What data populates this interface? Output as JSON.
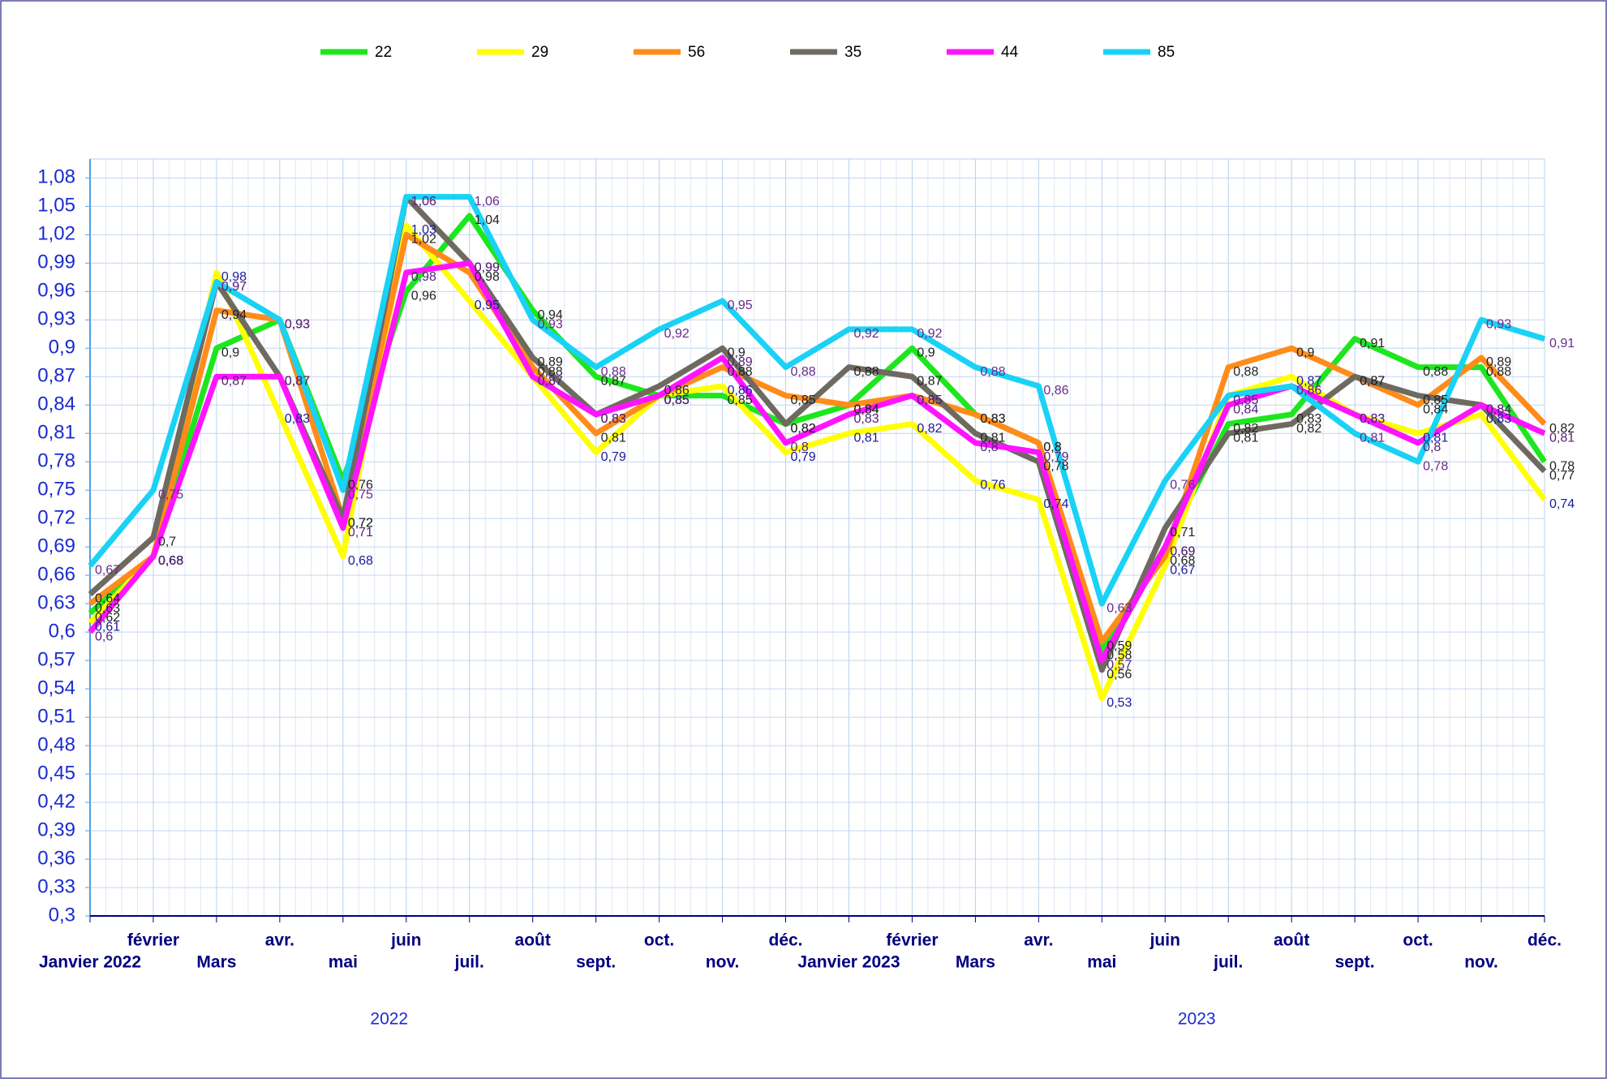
{
  "chart_data": {
    "type": "line",
    "categories": [
      "Janvier 2022",
      "février",
      "Mars",
      "avr.",
      "mai",
      "juin",
      "juil.",
      "août",
      "sept.",
      "oct.",
      "nov.",
      "déc.",
      "Janvier 2023",
      "février",
      "Mars",
      "avr.",
      "mai",
      "juin",
      "juil.",
      "août",
      "sept.",
      "oct.",
      "nov.",
      "déc."
    ],
    "groups": [
      "2022",
      "2023"
    ],
    "series": [
      {
        "name": "22",
        "color": "#1ee61e",
        "label_color": "#222222",
        "values": [
          0.62,
          0.68,
          0.9,
          0.93,
          0.76,
          0.96,
          1.04,
          0.94,
          0.87,
          0.85,
          0.85,
          0.82,
          0.84,
          0.9,
          0.83,
          0.8,
          0.58,
          0.69,
          0.82,
          0.83,
          0.91,
          0.88,
          0.88,
          0.78
        ],
        "value_labels": [
          "0,62",
          "0,68",
          "0,9",
          "0,93",
          "0,76",
          "0,96",
          "1,04",
          "0,94",
          "0,87",
          "0,85",
          "0,85",
          "0,82",
          "0,84",
          "0,9",
          "0,83",
          "0,8",
          "0,58",
          "0,69",
          "0,82",
          "0,83",
          "0,91",
          "0,88",
          "0,88",
          "0,78"
        ]
      },
      {
        "name": "29",
        "color": "#ffff00",
        "label_color": "#1a1a99",
        "values": [
          0.61,
          0.68,
          0.98,
          0.83,
          0.68,
          1.03,
          0.95,
          0.87,
          0.79,
          0.85,
          0.86,
          0.79,
          0.81,
          0.82,
          0.76,
          0.74,
          0.53,
          0.67,
          0.85,
          0.87,
          0.83,
          0.81,
          0.83,
          0.74
        ],
        "value_labels": [
          "0,61",
          "0,68",
          "0,98",
          "0,83",
          "0,68",
          "1,03",
          "0,95",
          "0,87",
          "0,79",
          "0,85",
          "0,86",
          "0,79",
          "0,81",
          "0,82",
          "0,76",
          "0,74",
          "0,53",
          "0,67",
          "0,85",
          "0,87",
          "0,83",
          "0,81",
          "0,83",
          "0,74"
        ]
      },
      {
        "name": "56",
        "color": "#ff8c1a",
        "label_color": "#222222",
        "values": [
          0.63,
          0.68,
          0.94,
          0.93,
          0.72,
          1.02,
          0.98,
          0.88,
          0.81,
          0.85,
          0.88,
          0.85,
          0.84,
          0.85,
          0.83,
          0.8,
          0.59,
          0.68,
          0.88,
          0.9,
          0.87,
          0.84,
          0.89,
          0.82
        ],
        "value_labels": [
          "0,63",
          "0,68",
          "0,94",
          "0,93",
          "0,72",
          "1,02",
          "0,98",
          "0,88",
          "0,81",
          "0,85",
          "0,88",
          "0,85",
          "0,84",
          "0,85",
          "0,83",
          "0,8",
          "0,59",
          "0,68",
          "0,88",
          "0,9",
          "0,87",
          "0,84",
          "0,89",
          "0,82"
        ]
      },
      {
        "name": "35",
        "color": "#6e6a60",
        "label_color": "#222222",
        "values": [
          0.64,
          0.7,
          0.97,
          0.87,
          0.72,
          1.06,
          0.99,
          0.89,
          0.83,
          0.86,
          0.9,
          0.82,
          0.88,
          0.87,
          0.81,
          0.78,
          0.56,
          0.71,
          0.81,
          0.82,
          0.87,
          0.85,
          0.84,
          0.77
        ],
        "value_labels": [
          "0,64",
          "0,7",
          "0,97",
          "0,87",
          "0,72",
          "1,06",
          "0,99",
          "0,89",
          "0,83",
          "0,86",
          "0,9",
          "0,82",
          "0,88",
          "0,87",
          "0,81",
          "0,78",
          "0,56",
          "0,71",
          "0,81",
          "0,82",
          "0,87",
          "0,85",
          "0,84",
          "0,77"
        ]
      },
      {
        "name": "44",
        "color": "#ff14ff",
        "label_color": "#552277",
        "values": [
          0.6,
          0.68,
          0.87,
          0.87,
          0.71,
          0.98,
          0.99,
          0.87,
          0.83,
          0.85,
          0.89,
          0.8,
          0.83,
          0.85,
          0.8,
          0.79,
          0.57,
          0.69,
          0.84,
          0.86,
          0.83,
          0.8,
          0.84,
          0.81
        ],
        "value_labels": [
          "0,6",
          "0,68",
          "0,87",
          "0,87",
          "0,71",
          "0,98",
          "0,99",
          "0,87",
          "0,83",
          "0,85",
          "0,89",
          "0,8",
          "0,83",
          "0,85",
          "0,8",
          "0,79",
          "0,57",
          "0,69",
          "0,84",
          "0,86",
          "0,83",
          "0,8",
          "0,84",
          "0,81"
        ]
      },
      {
        "name": "85",
        "color": "#19d2f5",
        "label_color": "#6a2a8a",
        "values": [
          0.67,
          0.75,
          0.97,
          0.93,
          0.75,
          1.06,
          1.06,
          0.93,
          0.88,
          0.92,
          0.95,
          0.88,
          0.92,
          0.92,
          0.88,
          0.86,
          0.63,
          0.76,
          0.85,
          0.86,
          0.81,
          0.78,
          0.93,
          0.91
        ],
        "value_labels": [
          "0,67",
          "0,75",
          "0,97",
          "0,93",
          "0,75",
          "1,06",
          "1,06",
          "0,93",
          "0,88",
          "0,92",
          "0,95",
          "0,88",
          "0,92",
          "0,92",
          "0,88",
          "0,86",
          "0,63",
          "0,76",
          "0,85",
          "0,86",
          "0,81",
          "0,78",
          "0,93",
          "0,91"
        ]
      }
    ],
    "ylim": [
      0.3,
      1.1
    ],
    "yticks": [
      {
        "value": 0.3,
        "label": "0,3"
      },
      {
        "value": 0.33,
        "label": "0,33"
      },
      {
        "value": 0.36,
        "label": "0,36"
      },
      {
        "value": 0.39,
        "label": "0,39"
      },
      {
        "value": 0.42,
        "label": "0,42"
      },
      {
        "value": 0.45,
        "label": "0,45"
      },
      {
        "value": 0.48,
        "label": "0,48"
      },
      {
        "value": 0.51,
        "label": "0,51"
      },
      {
        "value": 0.54,
        "label": "0,54"
      },
      {
        "value": 0.57,
        "label": "0,57"
      },
      {
        "value": 0.6,
        "label": "0,6"
      },
      {
        "value": 0.63,
        "label": "0,63"
      },
      {
        "value": 0.66,
        "label": "0,66"
      },
      {
        "value": 0.69,
        "label": "0,69"
      },
      {
        "value": 0.72,
        "label": "0,72"
      },
      {
        "value": 0.75,
        "label": "0,75"
      },
      {
        "value": 0.78,
        "label": "0,78"
      },
      {
        "value": 0.81,
        "label": "0,81"
      },
      {
        "value": 0.84,
        "label": "0,84"
      },
      {
        "value": 0.87,
        "label": "0,87"
      },
      {
        "value": 0.9,
        "label": "0,9"
      },
      {
        "value": 0.93,
        "label": "0,93"
      },
      {
        "value": 0.96,
        "label": "0,96"
      },
      {
        "value": 0.99,
        "label": "0,99"
      },
      {
        "value": 1.02,
        "label": "1,02"
      },
      {
        "value": 1.05,
        "label": "1,05"
      },
      {
        "value": 1.08,
        "label": "1,08"
      }
    ],
    "grid": true,
    "legend": "top"
  }
}
